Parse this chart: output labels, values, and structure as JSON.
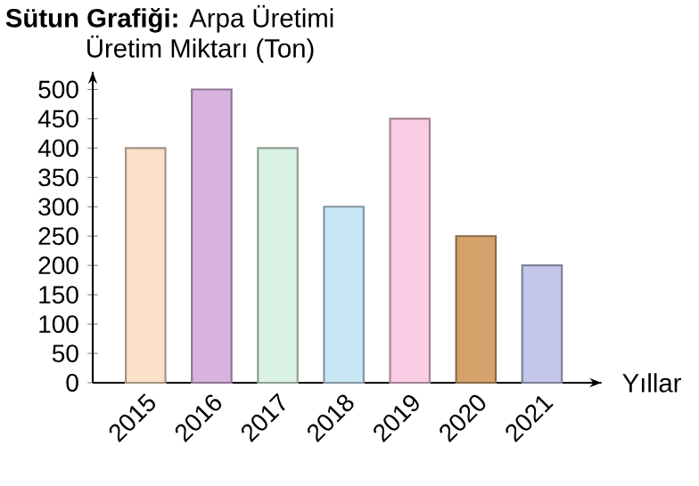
{
  "chart_data": {
    "type": "bar",
    "title": "**Sütun Grafiği:** Arpa Üretimi",
    "ylabel": "Üretim Miktarı (Ton)",
    "xlabel": "Yıllar",
    "categories": [
      "2015",
      "2016",
      "2017",
      "2018",
      "2019",
      "2020",
      "2021"
    ],
    "values": [
      400,
      500,
      400,
      300,
      450,
      250,
      200
    ],
    "colors": [
      "#fde0c8",
      "#d9b3e0",
      "#d9f2e3",
      "#c9e6f7",
      "#fbcde4",
      "#d4a26a",
      "#c4c6ea"
    ],
    "ylim": [
      0,
      530
    ],
    "yticks": [
      0,
      50,
      100,
      150,
      200,
      250,
      300,
      350,
      400,
      450,
      500
    ],
    "grid": false
  }
}
